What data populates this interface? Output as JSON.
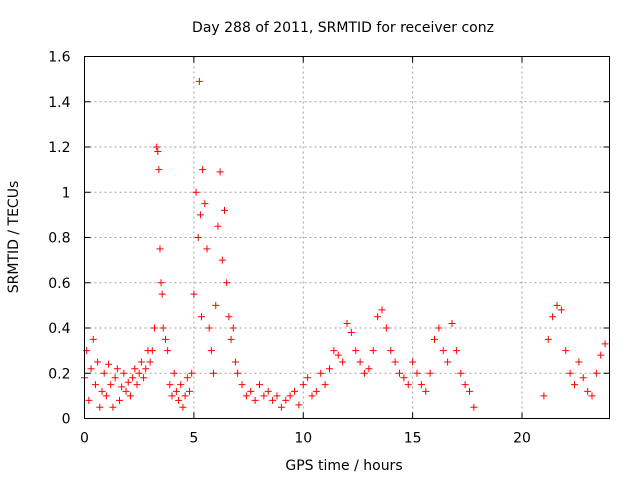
{
  "chart_data": {
    "type": "scatter",
    "title": "Day 288 of 2011, SRMTID for receiver conz",
    "xlabel": "GPS time / hours",
    "ylabel": "SRMTID / TECUs",
    "xlim": [
      0,
      24
    ],
    "ylim": [
      0,
      1.6
    ],
    "xticks": [
      0,
      5,
      10,
      15,
      20
    ],
    "yticks": [
      0,
      0.2,
      0.4,
      0.6,
      0.8,
      1,
      1.2,
      1.4,
      1.6
    ],
    "xtick_labels": [
      "0",
      "5",
      "10",
      "15",
      "20"
    ],
    "ytick_labels": [
      "0",
      "0.2",
      "0.4",
      "0.6",
      "0.8",
      "1",
      "1.2",
      "1.4",
      "1.6"
    ],
    "grid": true,
    "marker": "+",
    "color": "#ff0000",
    "series": [
      {
        "name": "SRMTID",
        "x": [
          0.0,
          0.1,
          0.2,
          0.3,
          0.4,
          0.5,
          0.6,
          0.7,
          0.8,
          0.9,
          1.0,
          1.1,
          1.2,
          1.3,
          1.4,
          1.5,
          1.6,
          1.7,
          1.8,
          1.9,
          2.0,
          2.1,
          2.2,
          2.3,
          2.4,
          2.5,
          2.6,
          2.7,
          2.8,
          2.9,
          3.0,
          3.1,
          3.2,
          3.3,
          3.35,
          3.4,
          3.45,
          3.5,
          3.55,
          3.6,
          3.7,
          3.8,
          3.9,
          4.0,
          4.1,
          4.2,
          4.3,
          4.4,
          4.5,
          4.6,
          4.7,
          4.8,
          4.9,
          5.0,
          5.1,
          5.2,
          5.25,
          5.3,
          5.35,
          5.4,
          5.5,
          5.6,
          5.7,
          5.8,
          5.9,
          6.0,
          6.1,
          6.2,
          6.3,
          6.4,
          6.5,
          6.6,
          6.7,
          6.8,
          6.9,
          7.0,
          7.2,
          7.4,
          7.6,
          7.8,
          8.0,
          8.2,
          8.4,
          8.6,
          8.8,
          9.0,
          9.2,
          9.4,
          9.6,
          9.8,
          10.0,
          10.2,
          10.4,
          10.6,
          10.8,
          11.0,
          11.2,
          11.4,
          11.6,
          11.8,
          12.0,
          12.2,
          12.4,
          12.6,
          12.8,
          13.0,
          13.2,
          13.4,
          13.6,
          13.8,
          14.0,
          14.2,
          14.4,
          14.6,
          14.8,
          15.0,
          15.2,
          15.4,
          15.6,
          15.8,
          16.0,
          16.2,
          16.4,
          16.6,
          16.8,
          17.0,
          17.2,
          17.4,
          17.6,
          17.8,
          21.0,
          21.2,
          21.4,
          21.6,
          21.8,
          22.0,
          22.2,
          22.4,
          22.6,
          22.8,
          23.0,
          23.2,
          23.4,
          23.6,
          23.8
        ],
        "y": [
          0.18,
          0.3,
          0.08,
          0.22,
          0.35,
          0.15,
          0.25,
          0.05,
          0.12,
          0.2,
          0.1,
          0.24,
          0.15,
          0.05,
          0.18,
          0.22,
          0.08,
          0.14,
          0.2,
          0.12,
          0.16,
          0.1,
          0.18,
          0.22,
          0.15,
          0.2,
          0.25,
          0.18,
          0.22,
          0.3,
          0.25,
          0.3,
          0.4,
          1.2,
          1.18,
          1.1,
          0.75,
          0.6,
          0.55,
          0.4,
          0.35,
          0.3,
          0.15,
          0.1,
          0.2,
          0.12,
          0.08,
          0.15,
          0.05,
          0.1,
          0.18,
          0.12,
          0.2,
          0.55,
          1.0,
          0.8,
          1.49,
          0.9,
          0.45,
          1.1,
          0.95,
          0.75,
          0.4,
          0.3,
          0.2,
          0.5,
          0.85,
          1.09,
          0.7,
          0.92,
          0.6,
          0.45,
          0.35,
          0.4,
          0.25,
          0.2,
          0.15,
          0.1,
          0.12,
          0.08,
          0.15,
          0.1,
          0.12,
          0.08,
          0.1,
          0.05,
          0.08,
          0.1,
          0.12,
          0.06,
          0.15,
          0.18,
          0.1,
          0.12,
          0.2,
          0.15,
          0.22,
          0.3,
          0.28,
          0.25,
          0.42,
          0.38,
          0.3,
          0.25,
          0.2,
          0.22,
          0.3,
          0.45,
          0.48,
          0.4,
          0.3,
          0.25,
          0.2,
          0.18,
          0.15,
          0.25,
          0.2,
          0.15,
          0.12,
          0.2,
          0.35,
          0.4,
          0.3,
          0.25,
          0.42,
          0.3,
          0.2,
          0.15,
          0.12,
          0.05,
          0.1,
          0.35,
          0.45,
          0.5,
          0.48,
          0.3,
          0.2,
          0.15,
          0.25,
          0.18,
          0.12,
          0.1,
          0.2,
          0.28,
          0.33
        ]
      }
    ]
  }
}
